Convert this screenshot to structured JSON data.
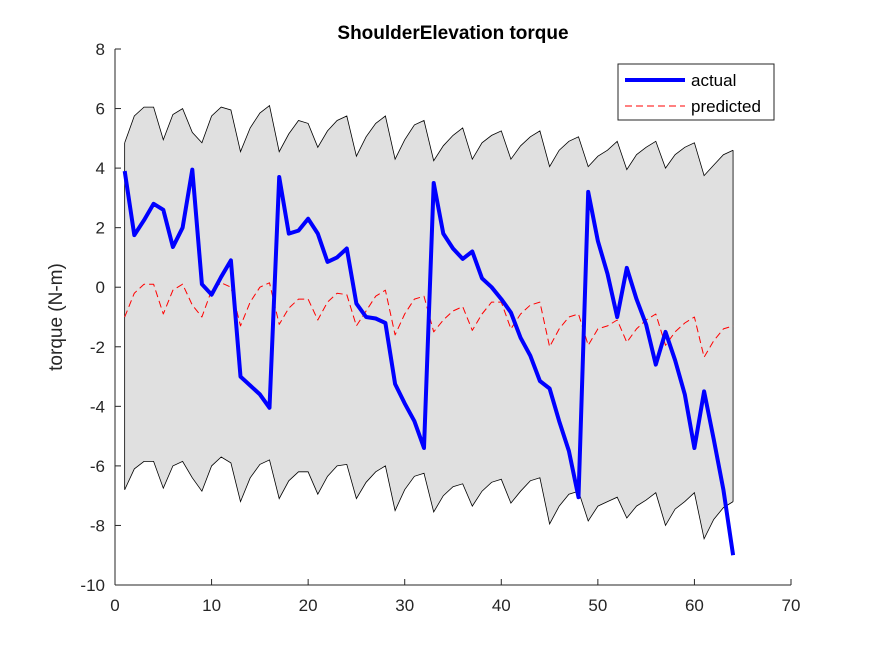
{
  "chart_data": {
    "type": "line",
    "title": "ShoulderElevation torque",
    "xlabel": "",
    "ylabel": "torque (N-m)",
    "xlim": [
      0,
      70
    ],
    "ylim": [
      -10,
      8
    ],
    "xticks": [
      0,
      10,
      20,
      30,
      40,
      50,
      60,
      70
    ],
    "yticks": [
      -10,
      -8,
      -6,
      -4,
      -2,
      0,
      2,
      4,
      6,
      8
    ],
    "legend_position": "top-right",
    "x": [
      1,
      2,
      3,
      4,
      5,
      6,
      7,
      8,
      9,
      10,
      11,
      12,
      13,
      14,
      15,
      16,
      17,
      18,
      19,
      20,
      21,
      22,
      23,
      24,
      25,
      26,
      27,
      28,
      29,
      30,
      31,
      32,
      33,
      34,
      35,
      36,
      37,
      38,
      39,
      40,
      41,
      42,
      43,
      44,
      45,
      46,
      47,
      48,
      49,
      50,
      51,
      52,
      53,
      54,
      55,
      56,
      57,
      58,
      59,
      60,
      61,
      62,
      63,
      64
    ],
    "series": [
      {
        "name": "actual",
        "color": "#0000ff",
        "style": "solid",
        "values": [
          3.9,
          1.75,
          2.25,
          2.8,
          2.6,
          1.35,
          2.0,
          3.95,
          0.1,
          -0.25,
          0.35,
          0.9,
          -3.0,
          -3.3,
          -3.6,
          -4.05,
          3.7,
          1.8,
          1.9,
          2.3,
          1.8,
          0.85,
          1.0,
          1.3,
          -0.55,
          -1.0,
          -1.05,
          -1.2,
          -3.25,
          -3.9,
          -4.5,
          -5.4,
          3.5,
          1.8,
          1.3,
          0.95,
          1.2,
          0.3,
          0.0,
          -0.4,
          -0.85,
          -1.7,
          -2.3,
          -3.15,
          -3.4,
          -4.5,
          -5.5,
          -7.05,
          3.2,
          1.55,
          0.45,
          -1.0,
          0.65,
          -0.4,
          -1.25,
          -2.6,
          -1.5,
          -2.45,
          -3.6,
          -5.4,
          -3.5,
          -5.1,
          -6.8,
          -9.0
        ]
      },
      {
        "name": "predicted",
        "color": "#ff0000",
        "style": "dashed",
        "values": [
          -1.0,
          -0.2,
          0.1,
          0.1,
          -0.9,
          -0.1,
          0.1,
          -0.6,
          -1.0,
          -0.1,
          0.15,
          0.0,
          -1.3,
          -0.5,
          0.0,
          0.15,
          -1.25,
          -0.7,
          -0.4,
          -0.4,
          -1.1,
          -0.5,
          -0.2,
          -0.25,
          -1.3,
          -0.8,
          -0.3,
          -0.1,
          -1.6,
          -0.9,
          -0.4,
          -0.3,
          -1.5,
          -1.1,
          -0.8,
          -0.65,
          -1.45,
          -0.9,
          -0.5,
          -0.5,
          -1.4,
          -0.9,
          -0.6,
          -0.5,
          -2.0,
          -1.4,
          -1.0,
          -0.9,
          -1.95,
          -1.4,
          -1.3,
          -1.1,
          -1.85,
          -1.4,
          -1.1,
          -0.9,
          -1.95,
          -1.5,
          -1.2,
          -1.0,
          -2.35,
          -1.8,
          -1.4,
          -1.3
        ]
      }
    ],
    "band": {
      "fill_color": "#e0e0e0",
      "edge_color": "#000000",
      "upper": [
        4.85,
        5.75,
        6.05,
        6.05,
        4.95,
        5.8,
        6.0,
        5.2,
        4.85,
        5.75,
        6.05,
        5.95,
        4.55,
        5.35,
        5.85,
        6.1,
        4.55,
        5.15,
        5.6,
        5.5,
        4.7,
        5.25,
        5.6,
        5.75,
        4.4,
        5.05,
        5.5,
        5.75,
        4.3,
        4.95,
        5.45,
        5.6,
        4.25,
        4.75,
        5.1,
        5.35,
        4.3,
        4.85,
        5.1,
        5.25,
        4.3,
        4.75,
        5.05,
        5.25,
        4.05,
        4.6,
        4.9,
        5.05,
        4.05,
        4.4,
        4.6,
        4.9,
        3.95,
        4.45,
        4.7,
        4.9,
        4.0,
        4.45,
        4.7,
        4.85,
        3.75,
        4.1,
        4.45,
        4.6
      ],
      "lower": [
        -6.8,
        -6.1,
        -5.85,
        -5.85,
        -6.75,
        -6.0,
        -5.85,
        -6.4,
        -6.85,
        -6.0,
        -5.7,
        -5.9,
        -7.2,
        -6.4,
        -5.95,
        -5.8,
        -7.1,
        -6.5,
        -6.2,
        -6.2,
        -6.95,
        -6.35,
        -6.0,
        -5.95,
        -7.1,
        -6.55,
        -6.2,
        -6.0,
        -7.5,
        -6.8,
        -6.35,
        -6.25,
        -7.55,
        -7.0,
        -6.7,
        -6.6,
        -7.35,
        -6.85,
        -6.55,
        -6.45,
        -7.25,
        -6.85,
        -6.5,
        -6.4,
        -7.95,
        -7.35,
        -6.95,
        -6.85,
        -7.85,
        -7.35,
        -7.2,
        -7.05,
        -7.75,
        -7.35,
        -7.15,
        -6.9,
        -8.0,
        -7.45,
        -7.2,
        -6.9,
        -8.45,
        -7.8,
        -7.4,
        -7.2
      ]
    }
  }
}
